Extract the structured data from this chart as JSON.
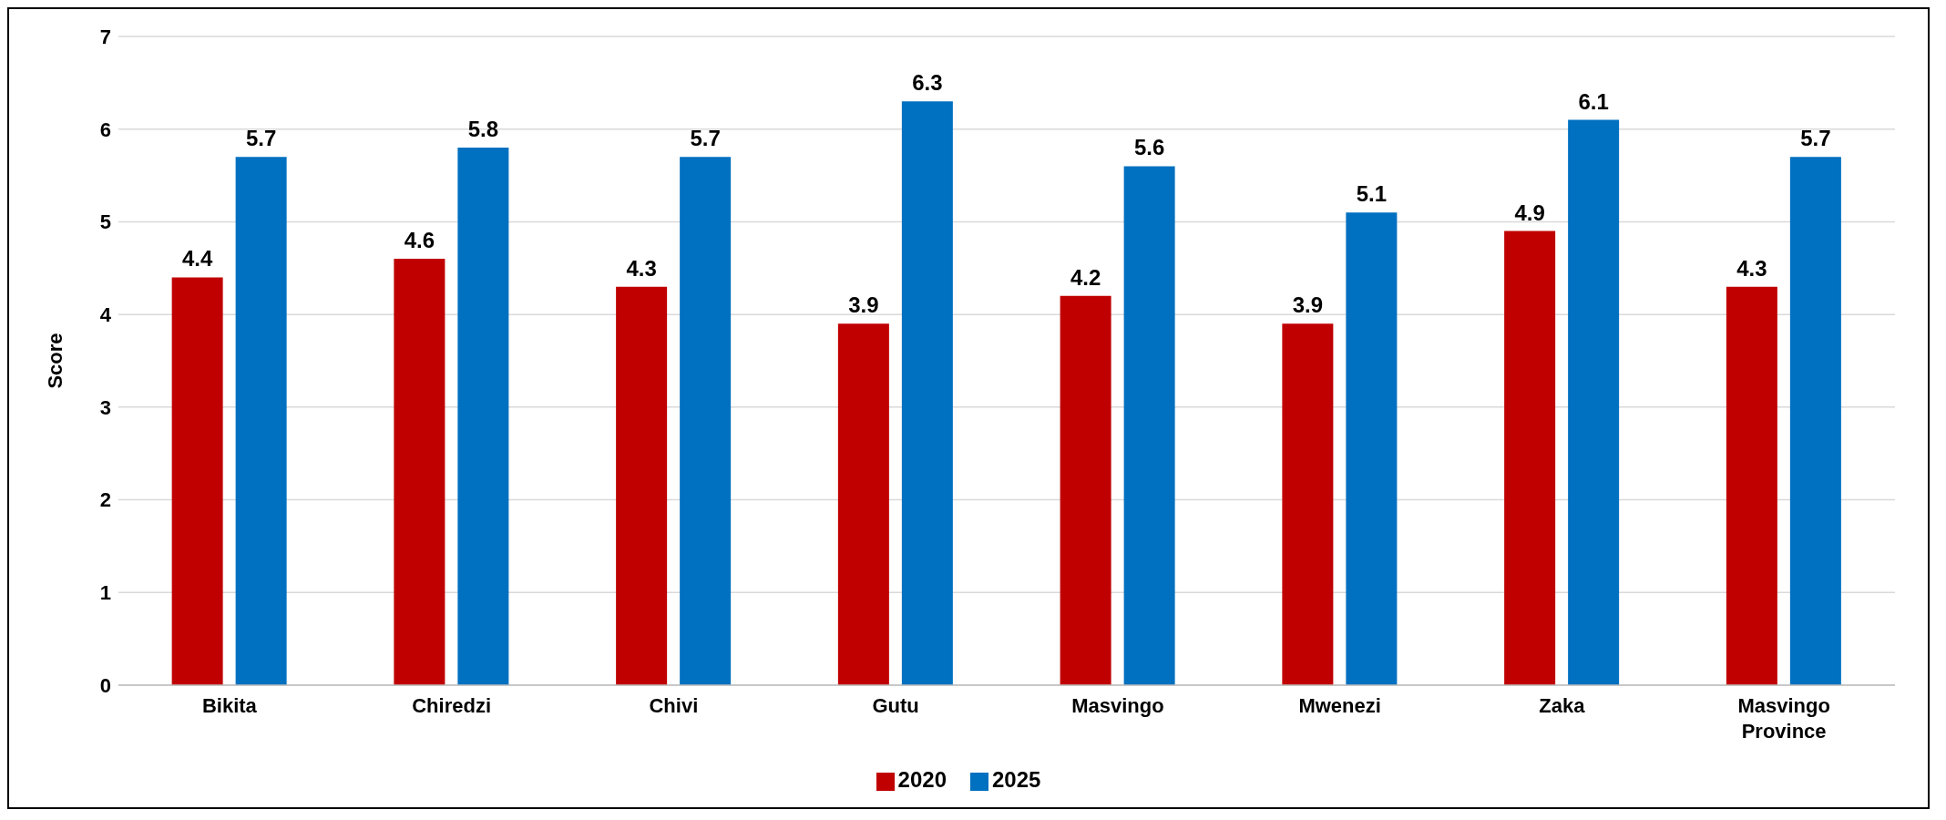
{
  "chart_data": {
    "type": "bar",
    "ylabel": "Score",
    "categories": [
      "Bikita",
      "Chiredzi",
      "Chivi",
      "Gutu",
      "Masvingo",
      "Mwenezi",
      "Zaka",
      "Masvingo Province"
    ],
    "series": [
      {
        "name": "2020",
        "color": "#c00000",
        "values": [
          4.4,
          4.6,
          4.3,
          3.9,
          4.2,
          3.9,
          4.9,
          4.3
        ]
      },
      {
        "name": "2025",
        "color": "#0070c0",
        "values": [
          5.7,
          5.8,
          5.7,
          6.3,
          5.6,
          5.1,
          6.1,
          5.7
        ]
      }
    ],
    "ylim": [
      0,
      7
    ],
    "yticks": [
      0,
      1,
      2,
      3,
      4,
      5,
      6,
      7
    ],
    "grid": "y",
    "legend": "bottom",
    "data_labels": true
  }
}
